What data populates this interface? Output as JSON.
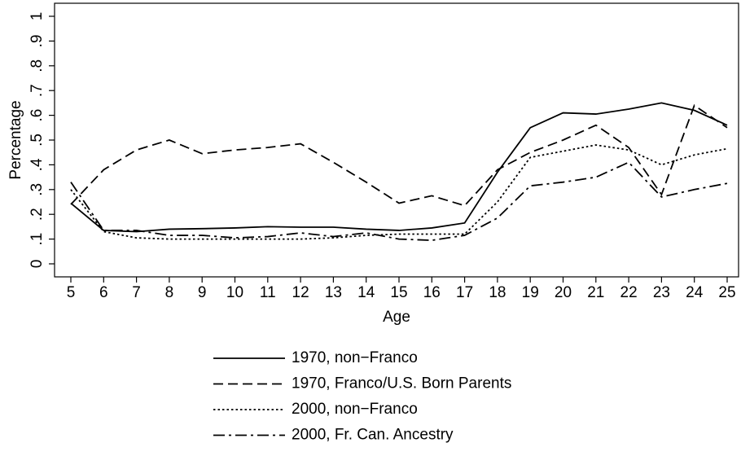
{
  "chart_data": {
    "type": "line",
    "x_label": "Age",
    "y_label": "Percentage",
    "x": [
      5,
      6,
      7,
      8,
      9,
      10,
      11,
      12,
      13,
      14,
      15,
      16,
      17,
      18,
      19,
      20,
      21,
      22,
      23,
      24,
      25
    ],
    "xlim": [
      5,
      25
    ],
    "xticks": [
      5,
      6,
      7,
      8,
      9,
      10,
      11,
      12,
      13,
      14,
      15,
      16,
      17,
      18,
      19,
      20,
      21,
      22,
      23,
      24,
      25
    ],
    "ylim": [
      0,
      1
    ],
    "yticks": [
      0,
      {
        "value": 0.1,
        "label": ".1"
      },
      {
        "value": 0.2,
        "label": ".2"
      },
      {
        "value": 0.3,
        "label": ".3"
      },
      {
        "value": 0.4,
        "label": ".4"
      },
      {
        "value": 0.5,
        "label": ".5"
      },
      {
        "value": 0.6,
        "label": ".6"
      },
      {
        "value": 0.7,
        "label": ".7"
      },
      {
        "value": 0.8,
        "label": ".8"
      },
      {
        "value": 0.9,
        "label": ".9"
      },
      1
    ],
    "legend": "bottom",
    "series": [
      {
        "name": "1970, non−Franco",
        "color": "#000000",
        "dash": "solid",
        "values": [
          0.245,
          0.135,
          0.13,
          0.14,
          0.142,
          0.145,
          0.15,
          0.148,
          0.148,
          0.14,
          0.135,
          0.145,
          0.165,
          0.37,
          0.55,
          0.61,
          0.605,
          0.625,
          0.65,
          0.62,
          0.56
        ]
      },
      {
        "name": "1970, Franco/U.S. Born Parents",
        "color": "#000000",
        "dash": "dashed",
        "values": [
          0.24,
          0.38,
          0.46,
          0.5,
          0.445,
          0.46,
          0.47,
          0.485,
          0.41,
          0.33,
          0.245,
          0.275,
          0.235,
          0.38,
          0.45,
          0.5,
          0.56,
          0.47,
          0.28,
          0.64,
          0.55
        ]
      },
      {
        "name": "2000, non−Franco",
        "color": "#000000",
        "dash": "dotted",
        "values": [
          0.3,
          0.13,
          0.105,
          0.1,
          0.1,
          0.1,
          0.1,
          0.1,
          0.105,
          0.115,
          0.12,
          0.12,
          0.12,
          0.25,
          0.43,
          0.455,
          0.48,
          0.46,
          0.4,
          0.44,
          0.465
        ]
      },
      {
        "name": "2000, Fr. Can. Ancestry",
        "color": "#000000",
        "dash": "dashdot",
        "values": [
          0.33,
          0.135,
          0.135,
          0.115,
          0.115,
          0.105,
          0.11,
          0.125,
          0.11,
          0.125,
          0.1,
          0.095,
          0.115,
          0.185,
          0.315,
          0.33,
          0.35,
          0.41,
          0.27,
          0.3,
          0.325
        ]
      }
    ]
  }
}
